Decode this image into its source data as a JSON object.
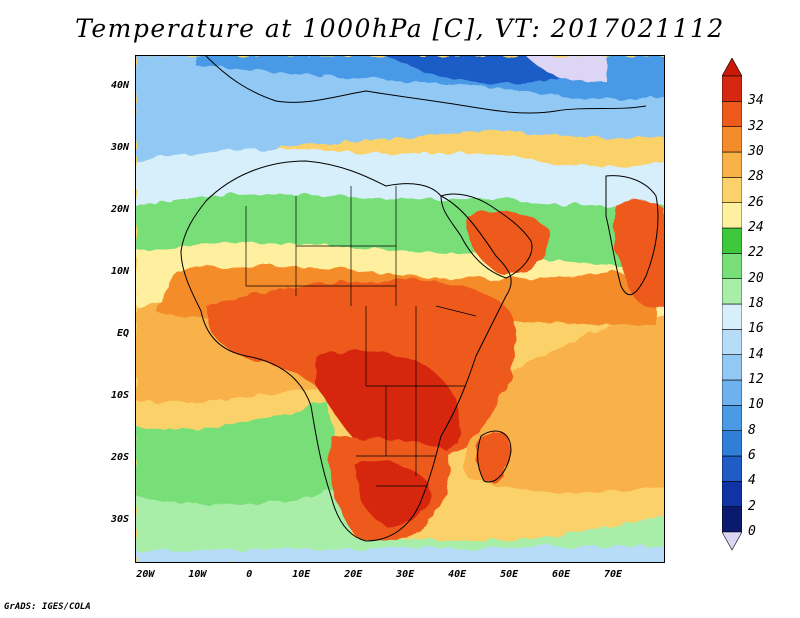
{
  "title": "Temperature at 1000hPa [C], VT: 2017021112",
  "credit": "GrADS: IGES/COLA",
  "map": {
    "extent": {
      "lon_min": -22,
      "lon_max": 80,
      "lat_min": -37,
      "lat_max": 45
    },
    "lon_ticks": [
      {
        "value": -20,
        "label": "20W"
      },
      {
        "value": -10,
        "label": "10W"
      },
      {
        "value": 0,
        "label": "0"
      },
      {
        "value": 10,
        "label": "10E"
      },
      {
        "value": 20,
        "label": "20E"
      },
      {
        "value": 30,
        "label": "30E"
      },
      {
        "value": 40,
        "label": "40E"
      },
      {
        "value": 50,
        "label": "50E"
      },
      {
        "value": 60,
        "label": "60E"
      },
      {
        "value": 70,
        "label": "70E"
      }
    ],
    "lat_ticks": [
      {
        "value": 40,
        "label": "40N"
      },
      {
        "value": 30,
        "label": "30N"
      },
      {
        "value": 20,
        "label": "20N"
      },
      {
        "value": 10,
        "label": "10N"
      },
      {
        "value": 0,
        "label": "EQ"
      },
      {
        "value": -10,
        "label": "10S"
      },
      {
        "value": -20,
        "label": "20S"
      },
      {
        "value": -30,
        "label": "30S"
      }
    ]
  },
  "colorbar": {
    "levels": [
      "0",
      "2",
      "4",
      "6",
      "8",
      "10",
      "12",
      "14",
      "16",
      "18",
      "20",
      "22",
      "24",
      "26",
      "28",
      "30",
      "32",
      "34"
    ],
    "colors": [
      "#0a1a6e",
      "#1034a6",
      "#1f5cc6",
      "#2f7ed8",
      "#4a9ae6",
      "#6db2ee",
      "#92c8f4",
      "#b6dcf8",
      "#d6effa",
      "#a8eea8",
      "#78de78",
      "#3ec83e",
      "#fff0a0",
      "#fbd26a",
      "#f9b248",
      "#f58c2c",
      "#ee5a1c",
      "#d62810"
    ],
    "under_color": "#dcd6f4",
    "over_color": "#c81808"
  }
}
